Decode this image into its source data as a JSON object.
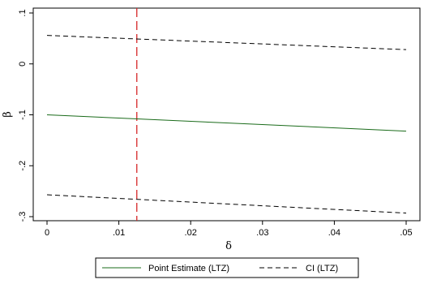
{
  "chart_data": {
    "type": "line",
    "xlabel": "δ",
    "ylabel": "β",
    "xlim": [
      0,
      0.05
    ],
    "ylim": [
      -0.3,
      0.1
    ],
    "x_ticks": [
      0,
      0.01,
      0.02,
      0.03,
      0.04,
      0.05
    ],
    "x_tick_labels": [
      "0",
      ".01",
      ".02",
      ".03",
      ".04",
      ".05"
    ],
    "y_ticks": [
      -0.3,
      -0.2,
      -0.1,
      0,
      0.1
    ],
    "y_tick_labels": [
      "-.3",
      "-.2",
      "-.1",
      "0",
      ".1"
    ],
    "grid": false,
    "legend_position": "bottom",
    "series": [
      {
        "name": "Point Estimate (LTZ)",
        "style": "solid",
        "color": "#1a6b1a",
        "x": [
          0,
          0.05
        ],
        "y": [
          -0.1,
          -0.132
        ]
      },
      {
        "name": "CI (LTZ)",
        "style": "dashed",
        "color": "#000000",
        "x": [
          0,
          0.05
        ],
        "y": [
          0.056,
          0.028
        ]
      },
      {
        "style": "dashed",
        "color": "#000000",
        "x": [
          0,
          0.05
        ],
        "y": [
          -0.257,
          -0.293
        ]
      }
    ],
    "vertical_lines": [
      {
        "x": 0.0125,
        "color": "#d62728",
        "style": "dashed"
      }
    ]
  }
}
